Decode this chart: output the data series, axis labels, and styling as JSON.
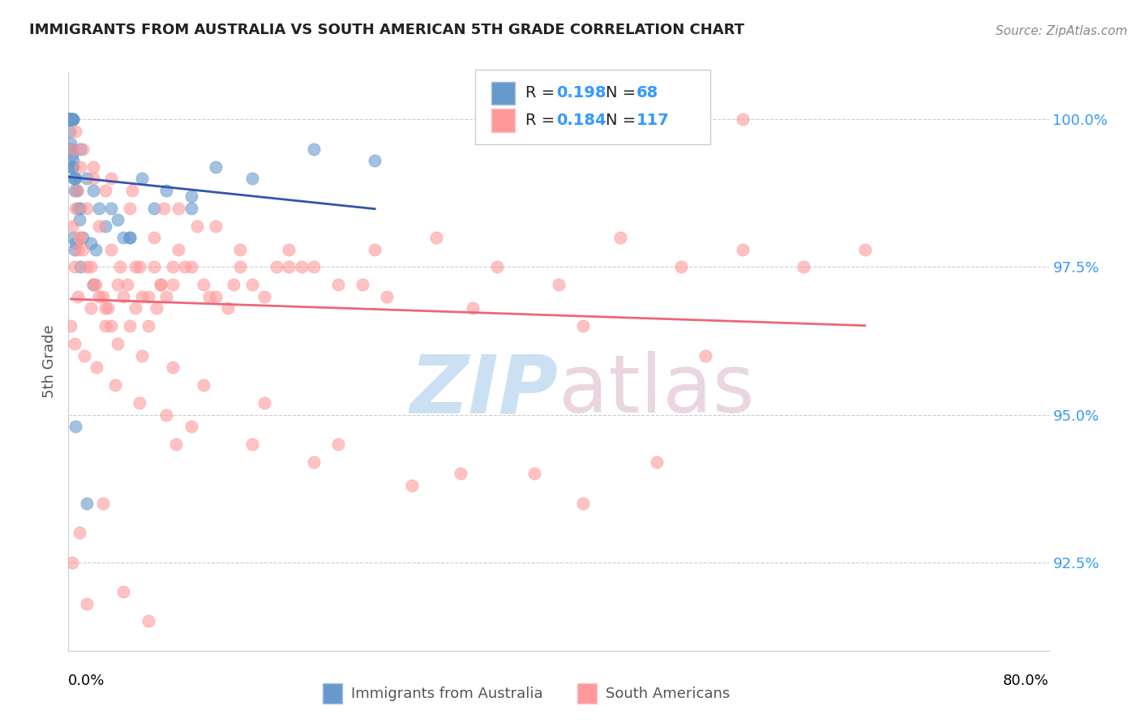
{
  "title": "IMMIGRANTS FROM AUSTRALIA VS SOUTH AMERICAN 5TH GRADE CORRELATION CHART",
  "source": "Source: ZipAtlas.com",
  "ylabel": "5th Grade",
  "xmin": 0.0,
  "xmax": 80.0,
  "ymin": 91.0,
  "ymax": 100.8,
  "legend_R1": "0.198",
  "legend_N1": "68",
  "legend_R2": "0.184",
  "legend_N2": "117",
  "label1": "Immigrants from Australia",
  "label2": "South Americans",
  "color1": "#6699CC",
  "color2": "#FF9999",
  "trendline_color1": "#3355AA",
  "trendline_color2": "#EE6677",
  "watermark_zip_color": "#AACCEE",
  "watermark_atlas_color": "#DDBBCC",
  "blue_x": [
    0.1,
    0.2,
    0.15,
    0.3,
    0.25,
    0.18,
    0.12,
    0.08,
    0.05,
    0.22,
    0.35,
    0.4,
    0.28,
    0.1,
    0.15,
    0.2,
    0.25,
    0.3,
    0.05,
    0.08,
    0.12,
    0.18,
    0.22,
    0.28,
    0.35,
    0.4,
    0.45,
    0.5,
    1.0,
    1.5,
    2.0,
    2.5,
    3.0,
    5.0,
    7.0,
    10.0,
    0.5,
    1.0,
    0.3,
    0.6,
    0.7,
    0.8,
    0.9,
    1.2,
    1.8,
    2.2,
    0.4,
    0.6,
    3.5,
    4.0,
    4.5,
    6.0,
    8.0,
    12.0,
    15.0,
    20.0,
    25.0,
    0.05,
    0.1,
    0.2,
    0.5,
    1.0,
    2.0,
    5.0,
    10.0,
    0.3,
    0.6,
    1.5
  ],
  "blue_y": [
    100.0,
    100.0,
    100.0,
    100.0,
    100.0,
    100.0,
    100.0,
    100.0,
    100.0,
    100.0,
    100.0,
    100.0,
    100.0,
    100.0,
    100.0,
    100.0,
    100.0,
    100.0,
    100.0,
    100.0,
    99.8,
    99.6,
    99.5,
    99.4,
    99.3,
    99.2,
    99.0,
    98.8,
    99.5,
    99.0,
    98.8,
    98.5,
    98.2,
    98.0,
    98.5,
    98.7,
    99.0,
    98.5,
    99.2,
    99.0,
    98.8,
    98.5,
    98.3,
    98.0,
    97.9,
    97.8,
    98.0,
    97.9,
    98.5,
    98.3,
    98.0,
    99.0,
    98.8,
    99.2,
    99.0,
    99.5,
    99.3,
    100.0,
    100.0,
    99.5,
    97.8,
    97.5,
    97.2,
    98.0,
    98.5,
    99.2,
    94.8,
    93.5
  ],
  "pink_x": [
    0.5,
    0.8,
    1.0,
    1.5,
    2.0,
    2.5,
    3.0,
    3.5,
    4.0,
    4.5,
    5.0,
    5.5,
    6.0,
    6.5,
    7.0,
    7.5,
    8.0,
    8.5,
    9.0,
    10.0,
    11.0,
    12.0,
    13.0,
    14.0,
    15.0,
    16.0,
    17.0,
    18.0,
    20.0,
    22.0,
    25.0,
    30.0,
    35.0,
    40.0,
    45.0,
    50.0,
    55.0,
    60.0,
    65.0,
    0.3,
    0.6,
    0.9,
    1.2,
    1.8,
    2.2,
    2.8,
    3.2,
    4.2,
    4.8,
    5.8,
    6.5,
    7.2,
    8.5,
    9.5,
    11.5,
    13.5,
    0.4,
    1.0,
    2.0,
    3.0,
    5.0,
    7.0,
    9.0,
    12.0,
    18.0,
    24.0,
    0.7,
    1.5,
    2.5,
    3.5,
    5.5,
    7.5,
    0.2,
    0.5,
    1.3,
    2.3,
    3.8,
    5.8,
    8.0,
    10.0,
    15.0,
    20.0,
    28.0,
    38.0,
    48.0,
    0.8,
    1.8,
    3.0,
    4.0,
    6.0,
    8.5,
    11.0,
    16.0,
    22.0,
    32.0,
    42.0,
    0.6,
    1.2,
    2.0,
    3.5,
    5.2,
    7.8,
    10.5,
    14.0,
    19.0,
    26.0,
    33.0,
    42.0,
    52.0,
    0.3,
    1.5,
    4.5,
    6.5,
    0.9,
    2.8,
    8.8,
    55.0
  ],
  "pink_y": [
    97.5,
    97.8,
    98.0,
    97.5,
    97.2,
    97.0,
    96.8,
    96.5,
    97.2,
    97.0,
    96.5,
    96.8,
    97.0,
    96.5,
    97.5,
    97.2,
    97.0,
    97.5,
    97.8,
    97.5,
    97.2,
    97.0,
    96.8,
    97.5,
    97.2,
    97.0,
    97.5,
    97.8,
    97.5,
    97.2,
    97.8,
    98.0,
    97.5,
    97.2,
    98.0,
    97.5,
    97.8,
    97.5,
    97.8,
    98.2,
    98.5,
    98.0,
    97.8,
    97.5,
    97.2,
    97.0,
    96.8,
    97.5,
    97.2,
    97.5,
    97.0,
    96.8,
    97.2,
    97.5,
    97.0,
    97.2,
    99.5,
    99.2,
    99.0,
    98.8,
    98.5,
    98.0,
    98.5,
    98.2,
    97.5,
    97.2,
    98.8,
    98.5,
    98.2,
    97.8,
    97.5,
    97.2,
    96.5,
    96.2,
    96.0,
    95.8,
    95.5,
    95.2,
    95.0,
    94.8,
    94.5,
    94.2,
    93.8,
    94.0,
    94.2,
    97.0,
    96.8,
    96.5,
    96.2,
    96.0,
    95.8,
    95.5,
    95.2,
    94.5,
    94.0,
    93.5,
    99.8,
    99.5,
    99.2,
    99.0,
    98.8,
    98.5,
    98.2,
    97.8,
    97.5,
    97.0,
    96.8,
    96.5,
    96.0,
    92.5,
    91.8,
    92.0,
    91.5,
    93.0,
    93.5,
    94.5,
    100.0
  ]
}
